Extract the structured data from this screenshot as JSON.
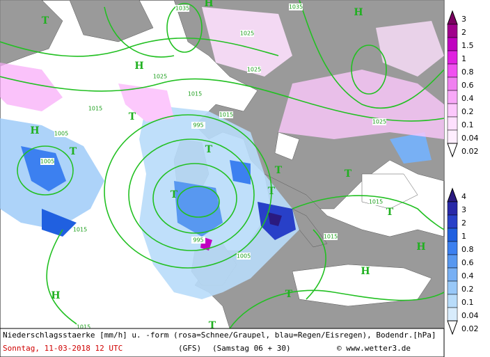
{
  "map": {
    "labels": [
      "T",
      "T",
      "H",
      "H",
      "H",
      "H",
      "T",
      "T",
      "T",
      "T",
      "T",
      "T",
      "H",
      "H",
      "H",
      "T",
      "T",
      "T",
      "1035",
      "1035",
      "1025",
      "1015",
      "1025",
      "1015",
      "1005",
      "995",
      "1005",
      "1015",
      "1015",
      "1015",
      "1025",
      "1025",
      "1015",
      "995",
      "1005",
      "1015"
    ]
  },
  "legend_snow": {
    "values": [
      "3",
      "2",
      "1.5",
      "1",
      "0.8",
      "0.6",
      "0.4",
      "0.2",
      "0.1",
      "0.04",
      "0.02"
    ]
  },
  "legend_rain": {
    "values": [
      "4",
      "3",
      "2",
      "1",
      "0.8",
      "0.6",
      "0.4",
      "0.2",
      "0.1",
      "0.04",
      "0.02"
    ]
  },
  "footer": {
    "description": "Niederschlagsstaerke [mm/h] u. -form (rosa=Schnee/Graupel, blau=Regen/Eisregen), Bodendr.[hPa]",
    "date": "Sonntag, 11-03-2018  12 UTC",
    "model": "(GFS)",
    "run": "(Samstag 06 + 30)",
    "credit": "© www.wetter3.de"
  }
}
